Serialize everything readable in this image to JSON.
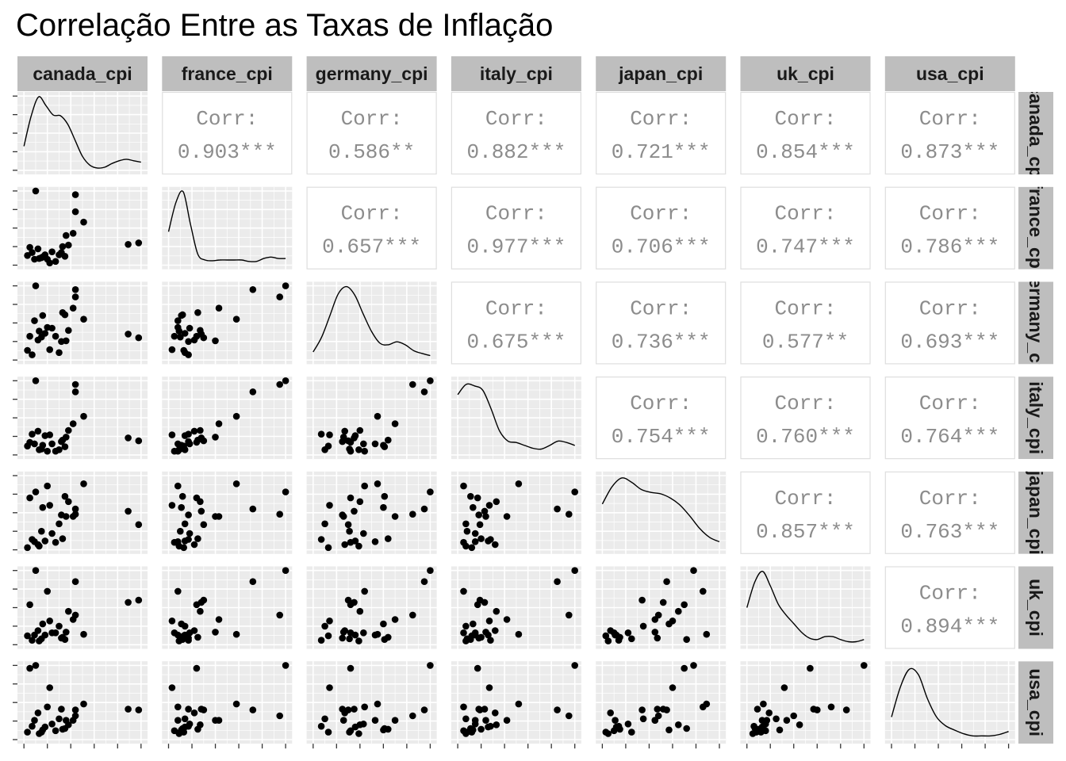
{
  "title": "Correlação Entre as Taxas de Inflação",
  "colors": {
    "panel_bg": "#ebebeb",
    "grid": "#ffffff",
    "strip_bg": "#bebebe",
    "strip_text": "#1a1a1a",
    "corr_text": "#8c8c8c",
    "corr_border": "#dedede",
    "points": "#000000",
    "ticks": "#333333"
  },
  "chart_data": {
    "type": "scatter",
    "layout": "pairs-matrix",
    "variables": [
      "canada_cpi",
      "france_cpi",
      "germany_cpi",
      "italy_cpi",
      "japan_cpi",
      "uk_cpi",
      "usa_cpi"
    ],
    "correlation_label": "Corr:",
    "correlations": [
      {
        "row": "canada_cpi",
        "col": "france_cpi",
        "text": "0.903***"
      },
      {
        "row": "canada_cpi",
        "col": "germany_cpi",
        "text": "0.586**"
      },
      {
        "row": "canada_cpi",
        "col": "italy_cpi",
        "text": "0.882***"
      },
      {
        "row": "canada_cpi",
        "col": "japan_cpi",
        "text": "0.721***"
      },
      {
        "row": "canada_cpi",
        "col": "uk_cpi",
        "text": "0.854***"
      },
      {
        "row": "canada_cpi",
        "col": "usa_cpi",
        "text": "0.873***"
      },
      {
        "row": "france_cpi",
        "col": "germany_cpi",
        "text": "0.657***"
      },
      {
        "row": "france_cpi",
        "col": "italy_cpi",
        "text": "0.977***"
      },
      {
        "row": "france_cpi",
        "col": "japan_cpi",
        "text": "0.706***"
      },
      {
        "row": "france_cpi",
        "col": "uk_cpi",
        "text": "0.747***"
      },
      {
        "row": "france_cpi",
        "col": "usa_cpi",
        "text": "0.786***"
      },
      {
        "row": "germany_cpi",
        "col": "italy_cpi",
        "text": "0.675***"
      },
      {
        "row": "germany_cpi",
        "col": "japan_cpi",
        "text": "0.736***"
      },
      {
        "row": "germany_cpi",
        "col": "uk_cpi",
        "text": "0.577**"
      },
      {
        "row": "germany_cpi",
        "col": "usa_cpi",
        "text": "0.693***"
      },
      {
        "row": "italy_cpi",
        "col": "japan_cpi",
        "text": "0.754***"
      },
      {
        "row": "italy_cpi",
        "col": "uk_cpi",
        "text": "0.760***"
      },
      {
        "row": "italy_cpi",
        "col": "usa_cpi",
        "text": "0.764***"
      },
      {
        "row": "japan_cpi",
        "col": "uk_cpi",
        "text": "0.857***"
      },
      {
        "row": "japan_cpi",
        "col": "usa_cpi",
        "text": "0.763***"
      },
      {
        "row": "uk_cpi",
        "col": "usa_cpi",
        "text": "0.894***"
      }
    ],
    "observations": {
      "canada_cpi": [
        0.33,
        0.18,
        0.27,
        0.09,
        0.03,
        0.13,
        0.07,
        0.15,
        0.24,
        0.36,
        0.44,
        0.44,
        0.89,
        0.98,
        0.32,
        0.3,
        0.22,
        0.05,
        0.1,
        0.42,
        0.2,
        0.51,
        0.38,
        0.16,
        0.35,
        0.12
      ],
      "france_cpi": [
        0.25,
        0.14,
        0.05,
        0.08,
        0.13,
        0.09,
        0.17,
        0.1,
        0.18,
        0.4,
        0.95,
        0.72,
        0.28,
        0.3,
        0.17,
        0.14,
        0.03,
        0.24,
        1.0,
        0.43,
        0.08,
        0.58,
        0.27,
        0.11,
        0.12,
        0.22
      ],
      "germany_cpi": [
        0.64,
        0.36,
        0.32,
        0.53,
        0.13,
        0.39,
        0.07,
        0.31,
        0.43,
        0.26,
        0.85,
        0.95,
        0.35,
        0.3,
        0.25,
        0.1,
        0.14,
        0.32,
        1.0,
        0.7,
        0.44,
        0.55,
        0.4,
        0.6,
        0.61,
        0.27
      ],
      "italy_cpi": [
        0.2,
        0.26,
        0.05,
        0.15,
        0.12,
        0.07,
        0.28,
        0.08,
        0.15,
        0.24,
        0.95,
        0.85,
        0.23,
        0.19,
        0.18,
        0.07,
        0.27,
        0.17,
        1.0,
        0.42,
        0.05,
        0.52,
        0.33,
        0.13,
        0.11,
        0.32
      ],
      "japan_cpi": [
        0.15,
        0.12,
        0.1,
        0.11,
        0.03,
        0.05,
        0.14,
        0.25,
        0.22,
        0.45,
        0.48,
        0.55,
        0.52,
        0.34,
        0.47,
        0.35,
        0.6,
        0.7,
        0.78,
        0.45,
        0.86,
        0.89,
        0.65,
        0.57,
        0.72,
        0.07
      ],
      "uk_cpi": [
        0.1,
        0.13,
        0.16,
        0.13,
        0.12,
        0.05,
        0.06,
        0.08,
        0.16,
        0.17,
        0.4,
        0.85,
        0.57,
        0.6,
        0.09,
        0.25,
        0.32,
        0.54,
        1.0,
        0.34,
        0.72,
        0.14,
        0.45,
        0.28,
        0.07,
        0.19
      ],
      "usa_cpi": [
        0.14,
        0.17,
        0.12,
        0.26,
        0.1,
        0.08,
        0.18,
        0.1,
        0.21,
        0.26,
        0.32,
        0.4,
        0.41,
        0.4,
        0.41,
        0.28,
        0.7,
        0.96,
        1.0,
        0.26,
        0.44,
        0.48,
        0.2,
        0.13,
        0.15,
        0.36
      ]
    },
    "densities": {
      "canada_cpi": [
        0.32,
        0.74,
        1.0,
        0.88,
        0.75,
        0.74,
        0.62,
        0.4,
        0.18,
        0.06,
        0.02,
        0.03,
        0.08,
        0.12,
        0.14,
        0.12,
        0.1
      ],
      "france_cpi": [
        0.45,
        0.85,
        1.0,
        0.55,
        0.14,
        0.06,
        0.05,
        0.06,
        0.06,
        0.06,
        0.06,
        0.04,
        0.04,
        0.08,
        0.1,
        0.08,
        0.08
      ],
      "germany_cpi": [
        0.1,
        0.3,
        0.6,
        0.9,
        1.0,
        0.88,
        0.62,
        0.38,
        0.22,
        0.2,
        0.24,
        0.2,
        0.12,
        0.08,
        0.05
      ],
      "italy_cpi": [
        0.82,
        0.96,
        0.94,
        0.88,
        0.62,
        0.32,
        0.18,
        0.16,
        0.12,
        0.08,
        0.07,
        0.12,
        0.18,
        0.16,
        0.12
      ],
      "japan_cpi": [
        0.62,
        0.86,
        0.98,
        0.92,
        0.82,
        0.78,
        0.76,
        0.7,
        0.6,
        0.45,
        0.28,
        0.16,
        0.1
      ],
      "uk_cpi": [
        0.5,
        0.85,
        1.0,
        0.8,
        0.55,
        0.4,
        0.28,
        0.16,
        0.08,
        0.06,
        0.1,
        0.1,
        0.06,
        0.03,
        0.03,
        0.06
      ],
      "usa_cpi": [
        0.3,
        0.72,
        0.96,
        0.88,
        0.55,
        0.3,
        0.18,
        0.12,
        0.07,
        0.04,
        0.04,
        0.04,
        0.06,
        0.1
      ]
    },
    "xlabel": "",
    "ylabel": "",
    "grid": true,
    "legend": "none"
  }
}
